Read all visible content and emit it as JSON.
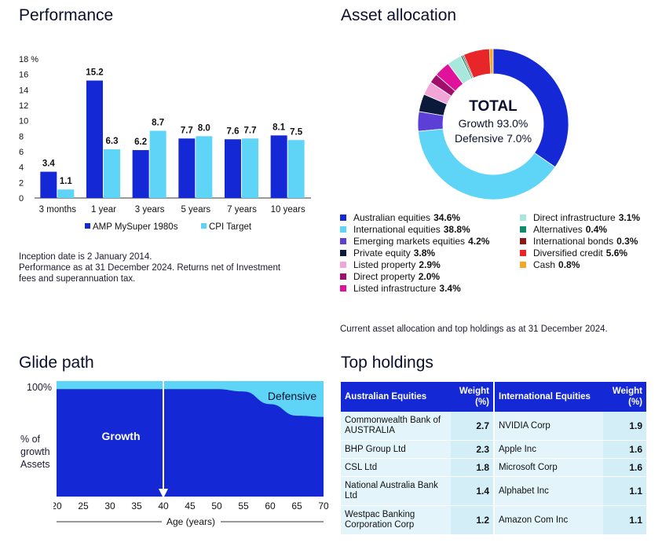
{
  "performance": {
    "title": "Performance",
    "notes": [
      "Inception date is 2 January 2014.",
      "Performance as at 31 December 2024. Returns net of Investment",
      "fees and superannuation tax."
    ],
    "colors": {
      "fund": "#1428d6",
      "target": "#5ed5f7"
    },
    "chart_data": {
      "type": "bar",
      "categories": [
        "3 months",
        "1 year",
        "3 years",
        "5 years",
        "7 years",
        "10 years"
      ],
      "series": [
        {
          "name": "AMP MySuper 1980s",
          "values": [
            3.4,
            15.2,
            6.2,
            7.7,
            7.6,
            8.1
          ],
          "labels": [
            "3.4",
            "15.2",
            "6.2",
            "7.7",
            "7.6",
            "8.1"
          ]
        },
        {
          "name": "CPI Target",
          "values": [
            1.1,
            6.3,
            8.7,
            8.0,
            7.7,
            7.5
          ],
          "labels": [
            "1.1",
            "6.3",
            "8.7",
            "8.0",
            "7.7",
            "7.5"
          ]
        }
      ],
      "yticks": [
        "0",
        "2",
        "4",
        "6",
        "8",
        "10",
        "12",
        "14",
        "16",
        "18 %"
      ],
      "ylim": [
        0,
        18
      ],
      "legend_position": "bottom"
    }
  },
  "allocation": {
    "title": "Asset allocation",
    "center": {
      "title": "TOTAL",
      "growth": "Growth 93.0%",
      "defensive": "Defensive 7.0%"
    },
    "note": "Current asset allocation and top holdings as at 31 December 2024.",
    "chart_data": {
      "type": "pie",
      "slices": [
        {
          "name": "Australian equities",
          "value": 34.6,
          "label": "34.6%",
          "color": "#1428d6"
        },
        {
          "name": "International equities",
          "value": 38.8,
          "label": "38.8%",
          "color": "#5ed5f7"
        },
        {
          "name": "Emerging markets equities",
          "value": 4.2,
          "label": "4.2%",
          "color": "#5b3fd6"
        },
        {
          "name": "Private equity",
          "value": 3.8,
          "label": "3.8%",
          "color": "#0b1a3a"
        },
        {
          "name": "Listed property",
          "value": 2.9,
          "label": "2.9%",
          "color": "#f2a6d8"
        },
        {
          "name": "Direct property",
          "value": 2.0,
          "label": "2.0%",
          "color": "#a0106b"
        },
        {
          "name": "Listed infrastructure",
          "value": 3.4,
          "label": "3.4%",
          "color": "#e0119a"
        },
        {
          "name": "Direct infrastructure",
          "value": 3.1,
          "label": "3.1%",
          "color": "#a8e8dc"
        },
        {
          "name": "Alternatives",
          "value": 0.4,
          "label": "0.4%",
          "color": "#0f8a6a"
        },
        {
          "name": "International bonds",
          "value": 0.3,
          "label": "0.3%",
          "color": "#8a1b1b"
        },
        {
          "name": "Diversified credit",
          "value": 5.6,
          "label": "5.6%",
          "color": "#e8262a"
        },
        {
          "name": "Cash",
          "value": 0.8,
          "label": "0.8%",
          "color": "#f5a623"
        }
      ]
    }
  },
  "glide": {
    "title": "Glide path",
    "top_label": "100%",
    "y_label": [
      "% of",
      "growth",
      "Assets"
    ],
    "growth_label": "Growth",
    "defensive_label": "Defensive",
    "x_label": "Age (years)",
    "colors": {
      "growth": "#1428d6",
      "defensive": "#5ed5f7"
    },
    "chart_data": {
      "type": "area",
      "x": [
        20,
        25,
        30,
        35,
        40,
        45,
        50,
        55,
        60,
        65,
        70
      ],
      "xticks": [
        "20",
        "25",
        "30",
        "35",
        "40",
        "45",
        "50",
        "55",
        "60",
        "65",
        "70"
      ],
      "growth": [
        93,
        93,
        93,
        93,
        93,
        93,
        93,
        91,
        80,
        70,
        69
      ],
      "marker_age": 40,
      "ylim": [
        0,
        100
      ]
    }
  },
  "holdings": {
    "title": "Top holdings",
    "headers": {
      "au": "Australian Equities",
      "au_w": "Weight (%)",
      "intl": "International Equities",
      "intl_w": "Weight (%)"
    },
    "rows": [
      {
        "au": "Commonwealth Bank of AUSTRALIA",
        "au_w": "2.7",
        "intl": "NVIDIA Corp",
        "intl_w": "1.9"
      },
      {
        "au": "BHP Group Ltd",
        "au_w": "2.3",
        "intl": "Apple Inc",
        "intl_w": "1.6"
      },
      {
        "au": "CSL Ltd",
        "au_w": "1.8",
        "intl": "Microsoft Corp",
        "intl_w": "1.6"
      },
      {
        "au": "National Australia Bank Ltd",
        "au_w": "1.4",
        "intl": "Alphabet Inc",
        "intl_w": "1.1"
      },
      {
        "au": "Westpac Banking Corporation Corp",
        "au_w": "1.2",
        "intl": "Amazon Com Inc",
        "intl_w": "1.1"
      }
    ]
  }
}
